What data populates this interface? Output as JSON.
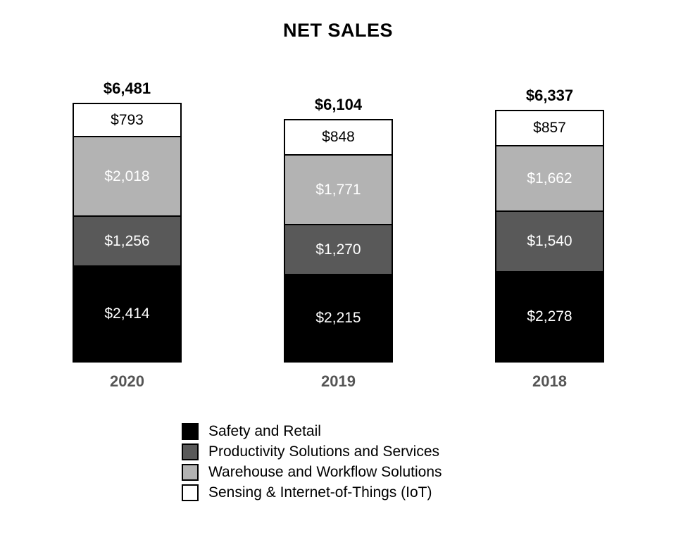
{
  "chart_data": {
    "type": "bar",
    "stacked": true,
    "title": "NET SALES",
    "categories": [
      "2020",
      "2019",
      "2018"
    ],
    "totals": [
      6481,
      6104,
      6337
    ],
    "total_labels": [
      "$6,481",
      "$6,104",
      "$6,337"
    ],
    "series": [
      {
        "name": "Safety and Retail",
        "color": "#000000",
        "label_color": "#ffffff",
        "values": [
          2414,
          2215,
          2278
        ],
        "labels": [
          "$2,414",
          "$2,215",
          "$2,278"
        ]
      },
      {
        "name": "Productivity Solutions and Services",
        "color": "#595959",
        "label_color": "#ffffff",
        "values": [
          1256,
          1270,
          1540
        ],
        "labels": [
          "$1,256",
          "$1,270",
          "$1,540"
        ]
      },
      {
        "name": "Warehouse and Workflow Solutions",
        "color": "#b3b3b3",
        "label_color": "#ffffff",
        "values": [
          2018,
          1771,
          1662
        ],
        "labels": [
          "$2,018",
          "$1,771",
          "$1,662"
        ]
      },
      {
        "name": "Sensing & Internet-of-Things (IoT)",
        "color": "#ffffff",
        "label_color": "#000000",
        "values": [
          793,
          848,
          857
        ],
        "labels": [
          "$793",
          "$848",
          "$857"
        ]
      }
    ],
    "legend_position": "bottom",
    "grid": false,
    "axes_shown": false
  }
}
